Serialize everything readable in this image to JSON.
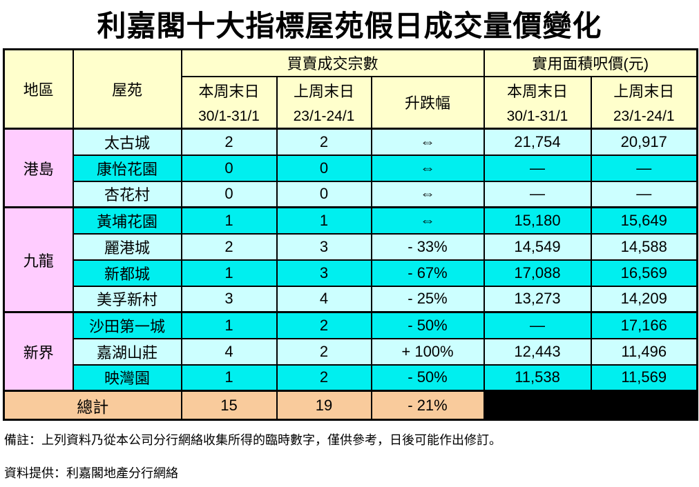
{
  "title": "利嘉閣十大指標屋苑假日成交量價變化",
  "colors": {
    "header_bg": "#FFFFCC",
    "region_bg": "#FFCCFF",
    "row_light_bg": "#CCFFFF",
    "row_bright_bg": "#00EFEF",
    "total_bg": "#F9CB9C",
    "blackout_bg": "#000000",
    "border": "#000000",
    "text": "#000000"
  },
  "table": {
    "headers": {
      "region": "地區",
      "estate": "屋苑",
      "deals_group": "買賣成交宗數",
      "price_group": "實用面積呎價(元)",
      "this_week_label": "本周末日",
      "this_week_dates": "30/1-31/1",
      "last_week_label": "上周末日",
      "last_week_dates": "23/1-24/1",
      "change_label": "升跌幅"
    },
    "groups": [
      {
        "region": "港島",
        "rows": [
          {
            "estate": "太古城",
            "deals_this_week": "2",
            "deals_last_week": "2",
            "change": "⇔",
            "price_this_week": "21,754",
            "price_last_week": "20,917"
          },
          {
            "estate": "康怡花園",
            "deals_this_week": "0",
            "deals_last_week": "0",
            "change": "⇔",
            "price_this_week": "—",
            "price_last_week": "—"
          },
          {
            "estate": "杏花村",
            "deals_this_week": "0",
            "deals_last_week": "0",
            "change": "⇔",
            "price_this_week": "—",
            "price_last_week": "—"
          }
        ]
      },
      {
        "region": "九龍",
        "rows": [
          {
            "estate": "黃埔花園",
            "deals_this_week": "1",
            "deals_last_week": "1",
            "change": "⇔",
            "price_this_week": "15,180",
            "price_last_week": "15,649"
          },
          {
            "estate": "麗港城",
            "deals_this_week": "2",
            "deals_last_week": "3",
            "change": "- 33%",
            "price_this_week": "14,549",
            "price_last_week": "14,588"
          },
          {
            "estate": "新都城",
            "deals_this_week": "1",
            "deals_last_week": "3",
            "change": "- 67%",
            "price_this_week": "17,088",
            "price_last_week": "16,569"
          },
          {
            "estate": "美孚新村",
            "deals_this_week": "3",
            "deals_last_week": "4",
            "change": "- 25%",
            "price_this_week": "13,273",
            "price_last_week": "14,209"
          }
        ]
      },
      {
        "region": "新界",
        "rows": [
          {
            "estate": "沙田第一城",
            "deals_this_week": "1",
            "deals_last_week": "2",
            "change": "- 50%",
            "price_this_week": "—",
            "price_last_week": "17,166"
          },
          {
            "estate": "嘉湖山莊",
            "deals_this_week": "4",
            "deals_last_week": "2",
            "change": "+ 100%",
            "price_this_week": "12,443",
            "price_last_week": "11,496"
          },
          {
            "estate": "映灣園",
            "deals_this_week": "1",
            "deals_last_week": "2",
            "change": "- 50%",
            "price_this_week": "11,538",
            "price_last_week": "11,569"
          }
        ]
      }
    ],
    "total": {
      "label": "總計",
      "deals_this_week": "15",
      "deals_last_week": "19",
      "change": "- 21%"
    }
  },
  "notes": {
    "remark": "備註：上列資料乃從本公司分行網絡收集所得的臨時數字，僅供參考，日後可能作出修訂。",
    "source": "資料提供：利嘉閣地產分行網絡"
  }
}
